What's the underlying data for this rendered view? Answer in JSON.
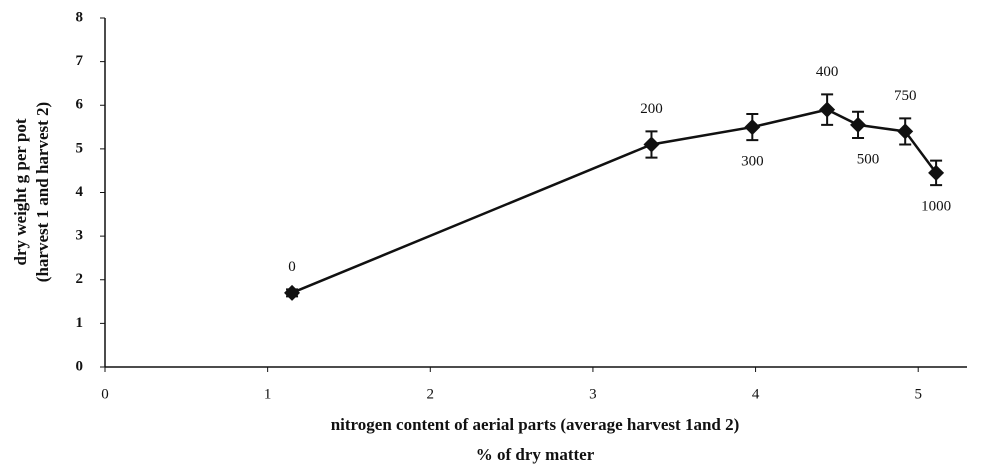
{
  "chart_data": {
    "type": "line",
    "x_label": [
      "nitrogen content of aerial parts (average harvest 1and 2)",
      "% of dry matter"
    ],
    "y_label": [
      "dry weight  g per pot",
      "(harvest 1 and  harvest 2)"
    ],
    "xlim": [
      0,
      5.3
    ],
    "xticks": [
      0,
      1,
      2,
      3,
      4,
      5
    ],
    "ylim": [
      0,
      8
    ],
    "yticks": [
      0,
      1,
      2,
      3,
      4,
      5,
      6,
      7,
      8
    ],
    "series": [
      {
        "color": "#111111",
        "x": [
          1.15,
          3.36,
          3.98,
          4.44,
          4.63,
          4.92,
          5.11
        ],
        "values": [
          1.7,
          5.1,
          5.5,
          5.9,
          5.55,
          5.4,
          4.45
        ],
        "errors": [
          0.08,
          0.3,
          0.3,
          0.35,
          0.3,
          0.3,
          0.28
        ],
        "point_labels": [
          "0",
          "200",
          "300",
          "400",
          "500",
          "750",
          "1000"
        ]
      }
    ]
  }
}
